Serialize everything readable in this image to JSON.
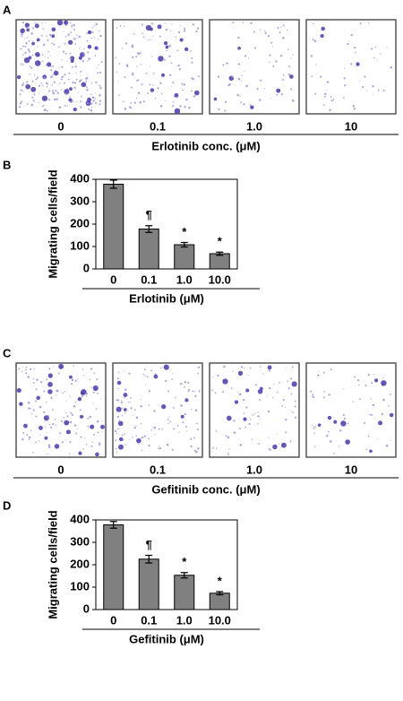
{
  "image_rows": [
    {
      "label": "A",
      "captions": [
        "0",
        "0.1",
        "1.0",
        "10"
      ],
      "xlabel": "Erlotinib conc. (μM)"
    },
    {
      "label": "C",
      "captions": [
        "0",
        "0.1",
        "1.0",
        "10"
      ],
      "xlabel": "Gefitinib conc. (μM)"
    }
  ],
  "chart_data": [
    {
      "type": "bar",
      "panel_label": "B",
      "ylabel": "Migrating cells/field",
      "xlabel": "Erlotinib (μM)",
      "categories": [
        "0",
        "0.1",
        "1.0",
        "10.0"
      ],
      "values": [
        378,
        178,
        108,
        68
      ],
      "errors": [
        18,
        15,
        10,
        7
      ],
      "annotations": [
        null,
        "¶",
        "*",
        "*"
      ],
      "color": "#808080",
      "ylim": [
        0,
        400
      ],
      "yticks": [
        0,
        100,
        200,
        300,
        400
      ]
    },
    {
      "type": "bar",
      "panel_label": "D",
      "ylabel": "Migrating cells/field",
      "xlabel": "Gefitinib (μM)",
      "categories": [
        "0",
        "0.1",
        "1.0",
        "10.0"
      ],
      "values": [
        378,
        225,
        153,
        73
      ],
      "errors": [
        15,
        17,
        12,
        7
      ],
      "annotations": [
        null,
        "¶",
        "*",
        "*"
      ],
      "color": "#808080",
      "ylim": [
        0,
        400
      ],
      "yticks": [
        0,
        100,
        200,
        300,
        400
      ]
    }
  ]
}
